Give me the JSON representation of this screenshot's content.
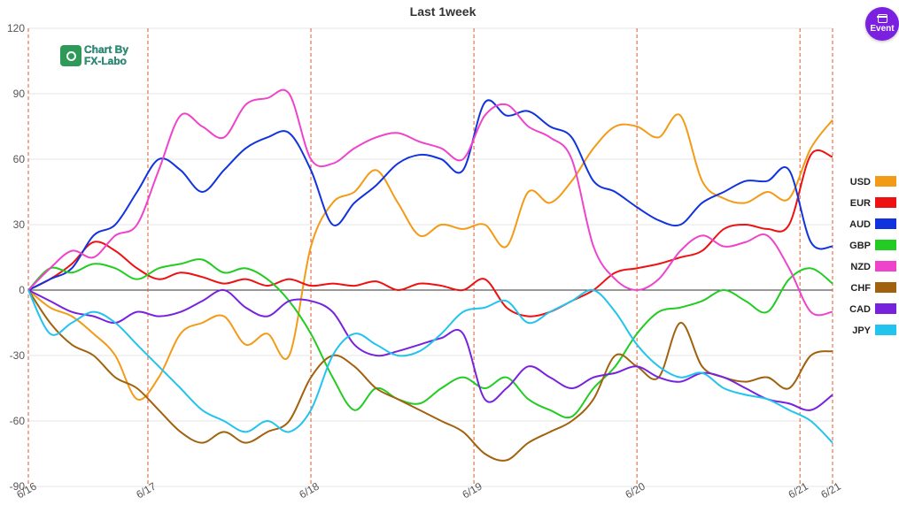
{
  "event_button": {
    "label": "Event",
    "icon": "calendar-icon",
    "color": "#7b1fe0"
  },
  "logo": {
    "line1": "Chart By",
    "line2": "FX-Labo"
  },
  "chart_data": {
    "type": "line",
    "title": "Last 1week",
    "xlabel": "",
    "ylabel": "",
    "ylim": [
      -90,
      120
    ],
    "yticks": [
      120,
      90,
      60,
      30,
      0,
      -30,
      -60,
      -90
    ],
    "grid": true,
    "legend_position": "right",
    "x_ticks": [
      {
        "x": 0,
        "label": "6/16"
      },
      {
        "x": 22,
        "label": "6/17"
      },
      {
        "x": 52,
        "label": "6/18"
      },
      {
        "x": 82,
        "label": "6/19"
      },
      {
        "x": 112,
        "label": "6/20"
      },
      {
        "x": 142,
        "label": "6/21"
      },
      {
        "x": 148,
        "label": "6/21"
      }
    ],
    "x": [
      0,
      4,
      8,
      12,
      16,
      20,
      24,
      28,
      32,
      36,
      40,
      44,
      48,
      52,
      56,
      60,
      64,
      68,
      72,
      76,
      80,
      84,
      88,
      92,
      96,
      100,
      104,
      108,
      112,
      116,
      120,
      124,
      128,
      132,
      136,
      140,
      144,
      148
    ],
    "series": [
      {
        "name": "USD",
        "color": "#f29b16",
        "values": [
          0,
          -8,
          -12,
          -20,
          -30,
          -50,
          -40,
          -20,
          -15,
          -12,
          -25,
          -20,
          -30,
          20,
          40,
          45,
          55,
          40,
          25,
          30,
          28,
          30,
          20,
          45,
          40,
          50,
          65,
          75,
          75,
          70,
          80,
          50,
          42,
          40,
          45,
          42,
          65,
          78
        ]
      },
      {
        "name": "EUR",
        "color": "#ee1111",
        "values": [
          0,
          5,
          12,
          22,
          18,
          10,
          5,
          8,
          6,
          3,
          5,
          2,
          5,
          2,
          3,
          2,
          4,
          0,
          3,
          2,
          0,
          5,
          -8,
          -12,
          -10,
          -5,
          0,
          8,
          10,
          12,
          15,
          18,
          28,
          30,
          28,
          30,
          62,
          61
        ]
      },
      {
        "name": "AUD",
        "color": "#1133dd",
        "values": [
          0,
          5,
          10,
          25,
          30,
          45,
          60,
          55,
          45,
          55,
          65,
          70,
          72,
          55,
          30,
          40,
          48,
          58,
          62,
          60,
          55,
          86,
          80,
          82,
          75,
          70,
          50,
          45,
          38,
          32,
          30,
          40,
          45,
          50,
          50,
          55,
          22,
          20
        ]
      },
      {
        "name": "GBP",
        "color": "#22cc22",
        "values": [
          0,
          10,
          8,
          12,
          10,
          5,
          10,
          12,
          14,
          8,
          10,
          5,
          -5,
          -20,
          -40,
          -55,
          -45,
          -50,
          -52,
          -45,
          -40,
          -45,
          -40,
          -50,
          -55,
          -58,
          -45,
          -35,
          -20,
          -10,
          -8,
          -5,
          0,
          -5,
          -10,
          5,
          10,
          3
        ]
      },
      {
        "name": "NZD",
        "color": "#ee44cc",
        "values": [
          0,
          10,
          18,
          15,
          25,
          30,
          55,
          80,
          75,
          70,
          85,
          88,
          90,
          60,
          58,
          65,
          70,
          72,
          68,
          65,
          60,
          80,
          85,
          75,
          70,
          60,
          20,
          5,
          0,
          5,
          18,
          25,
          20,
          22,
          25,
          10,
          -10,
          -10
        ]
      },
      {
        "name": "CHF",
        "color": "#a0620e",
        "values": [
          0,
          -15,
          -25,
          -30,
          -40,
          -45,
          -55,
          -65,
          -70,
          -65,
          -70,
          -65,
          -60,
          -40,
          -30,
          -35,
          -45,
          -50,
          -55,
          -60,
          -65,
          -75,
          -78,
          -70,
          -65,
          -60,
          -50,
          -30,
          -35,
          -40,
          -15,
          -35,
          -40,
          -42,
          -40,
          -45,
          -30,
          -28
        ]
      },
      {
        "name": "CAD",
        "color": "#7722dd",
        "values": [
          0,
          -5,
          -10,
          -12,
          -15,
          -10,
          -12,
          -10,
          -5,
          0,
          -8,
          -12,
          -5,
          -5,
          -10,
          -25,
          -30,
          -28,
          -25,
          -22,
          -20,
          -50,
          -45,
          -35,
          -40,
          -45,
          -40,
          -38,
          -35,
          -40,
          -42,
          -38,
          -40,
          -45,
          -50,
          -52,
          -55,
          -48
        ]
      },
      {
        "name": "JPY",
        "color": "#22c4ee",
        "values": [
          0,
          -20,
          -15,
          -10,
          -15,
          -25,
          -35,
          -45,
          -55,
          -60,
          -65,
          -60,
          -65,
          -55,
          -30,
          -20,
          -25,
          -30,
          -28,
          -20,
          -10,
          -8,
          -5,
          -15,
          -10,
          -5,
          0,
          -10,
          -25,
          -35,
          -40,
          -38,
          -45,
          -48,
          -50,
          -55,
          -60,
          -70
        ]
      }
    ]
  }
}
